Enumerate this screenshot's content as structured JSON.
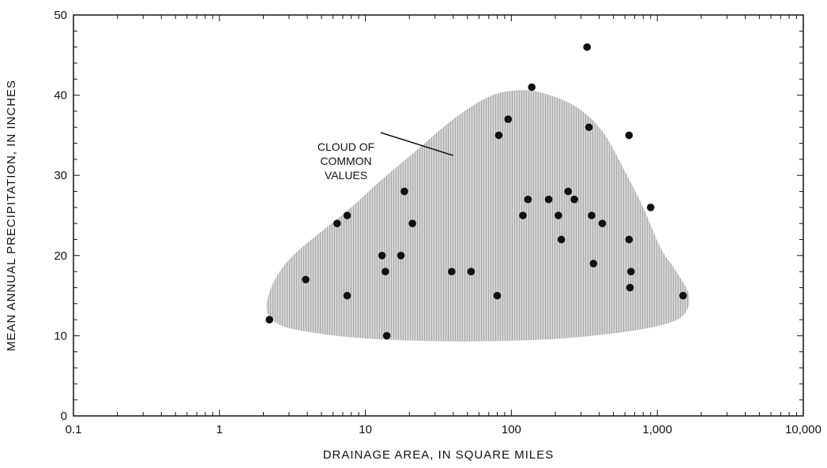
{
  "chart_data": {
    "type": "scatter",
    "title": "",
    "xlabel": "DRAINAGE AREA, IN SQUARE MILES",
    "ylabel": "MEAN ANNUAL PRECIPITATION, IN INCHES",
    "xscale": "log",
    "xlim": [
      0.1,
      10000
    ],
    "ylim": [
      0,
      50
    ],
    "x_tick_labels": [
      {
        "value": 0.1,
        "label": "0.1"
      },
      {
        "value": 1,
        "label": "1"
      },
      {
        "value": 10,
        "label": "10"
      },
      {
        "value": 100,
        "label": "100"
      },
      {
        "value": 1000,
        "label": "1,000"
      },
      {
        "value": 10000,
        "label": "10,000"
      }
    ],
    "y_tick_labels": [
      {
        "value": 0,
        "label": "0"
      },
      {
        "value": 10,
        "label": "10"
      },
      {
        "value": 20,
        "label": "20"
      },
      {
        "value": 30,
        "label": "30"
      },
      {
        "value": 40,
        "label": "40"
      },
      {
        "value": 50,
        "label": "50"
      }
    ],
    "grid": false,
    "legend": "none",
    "annotation": {
      "lines": [
        "CLOUD OF",
        "COMMON",
        "VALUES"
      ],
      "points_to": {
        "x": 40,
        "y": 31
      }
    },
    "cloud_region": [
      [
        2.1,
        13.5
      ],
      [
        2.4,
        17
      ],
      [
        3.2,
        20
      ],
      [
        5,
        23
      ],
      [
        8,
        26
      ],
      [
        13,
        29.5
      ],
      [
        22,
        33
      ],
      [
        40,
        37
      ],
      [
        70,
        39.8
      ],
      [
        110,
        40.6
      ],
      [
        170,
        40.2
      ],
      [
        280,
        38.5
      ],
      [
        420,
        35.5
      ],
      [
        580,
        31
      ],
      [
        800,
        26
      ],
      [
        1050,
        21
      ],
      [
        1350,
        18
      ],
      [
        1650,
        15
      ],
      [
        1500,
        12.5
      ],
      [
        1000,
        11.2
      ],
      [
        500,
        10.3
      ],
      [
        200,
        9.6
      ],
      [
        60,
        9.3
      ],
      [
        20,
        9.4
      ],
      [
        8,
        9.8
      ],
      [
        4,
        10.5
      ],
      [
        2.5,
        11.5
      ]
    ],
    "cloud_color": "#b8b8b8",
    "point_color": "#111111",
    "points": [
      {
        "x": 2.2,
        "y": 12
      },
      {
        "x": 3.9,
        "y": 17
      },
      {
        "x": 6.4,
        "y": 24
      },
      {
        "x": 7.5,
        "y": 25
      },
      {
        "x": 7.5,
        "y": 15
      },
      {
        "x": 13,
        "y": 20
      },
      {
        "x": 13.7,
        "y": 18
      },
      {
        "x": 14,
        "y": 10
      },
      {
        "x": 17.5,
        "y": 20
      },
      {
        "x": 18.5,
        "y": 28
      },
      {
        "x": 21,
        "y": 24
      },
      {
        "x": 39,
        "y": 18
      },
      {
        "x": 53,
        "y": 18
      },
      {
        "x": 80,
        "y": 15
      },
      {
        "x": 82,
        "y": 35
      },
      {
        "x": 95,
        "y": 37
      },
      {
        "x": 120,
        "y": 25
      },
      {
        "x": 130,
        "y": 27
      },
      {
        "x": 138,
        "y": 41
      },
      {
        "x": 180,
        "y": 27
      },
      {
        "x": 210,
        "y": 25
      },
      {
        "x": 220,
        "y": 22
      },
      {
        "x": 245,
        "y": 28
      },
      {
        "x": 270,
        "y": 27
      },
      {
        "x": 330,
        "y": 46
      },
      {
        "x": 340,
        "y": 36
      },
      {
        "x": 355,
        "y": 25
      },
      {
        "x": 365,
        "y": 19
      },
      {
        "x": 420,
        "y": 24
      },
      {
        "x": 640,
        "y": 22
      },
      {
        "x": 640,
        "y": 35
      },
      {
        "x": 650,
        "y": 16
      },
      {
        "x": 660,
        "y": 18
      },
      {
        "x": 900,
        "y": 26
      },
      {
        "x": 1500,
        "y": 15
      }
    ]
  }
}
